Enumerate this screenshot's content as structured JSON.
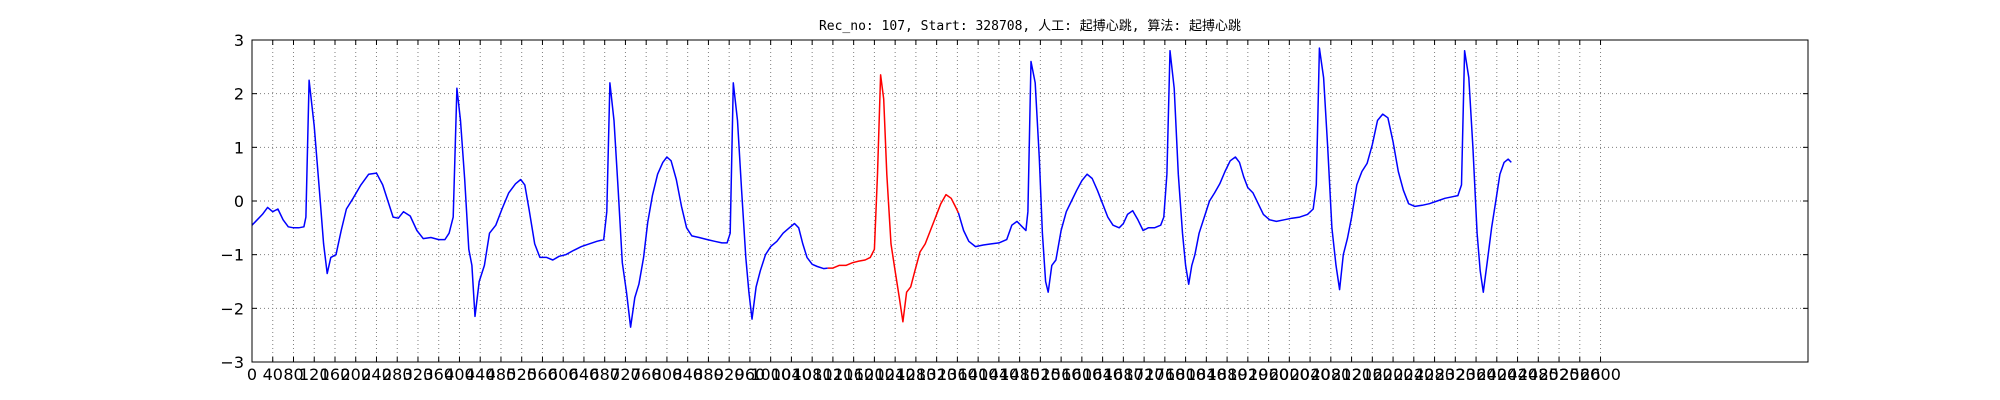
{
  "chart_data": {
    "type": "line",
    "title": "Rec_no: 107, Start: 328708, 人工: 起搏心跳, 算法: 起搏心跳",
    "xlabel": "",
    "ylabel": "",
    "xlim": [
      0,
      3000
    ],
    "ylim": [
      -3,
      3
    ],
    "grid": true,
    "x_ticks": [
      0,
      40,
      80,
      120,
      160,
      200,
      240,
      280,
      320,
      360,
      400,
      440,
      480,
      520,
      560,
      600,
      640,
      680,
      720,
      760,
      800,
      840,
      880,
      920,
      960,
      1000,
      1040,
      1080,
      1120,
      1160,
      1200,
      1240,
      1280,
      1320,
      1360,
      1400,
      1440,
      1480,
      1520,
      1560,
      1600,
      1640,
      1680,
      1720,
      1760,
      1800,
      1840,
      1880,
      1920,
      1960,
      2000,
      2040,
      2080,
      2120,
      2160,
      2200,
      2240,
      2280,
      2320,
      2360,
      2400,
      2440,
      2480,
      2520,
      2560,
      2600
    ],
    "x_tick_labels": [
      "0",
      "40",
      "80",
      "120",
      "160",
      "200",
      "240",
      "280",
      "320",
      "360",
      "400",
      "440",
      "480",
      "520",
      "560",
      "600",
      "640",
      "680",
      "720",
      "760",
      "800",
      "840",
      "880",
      "920",
      "960",
      "1000",
      "1040",
      "1080",
      "1120",
      "1160",
      "1200",
      "1240",
      "1280",
      "1320",
      "1360",
      "1400",
      "1440",
      "1480",
      "1520",
      "1560",
      "1600",
      "1640",
      "1680",
      "1720",
      "1760",
      "1800",
      "1840",
      "1880",
      "1920",
      "1960",
      "2000",
      "2040",
      "2080",
      "2120",
      "2160",
      "2200",
      "2240",
      "2280",
      "2320",
      "2360",
      "2400",
      "2440",
      "2480",
      "2520",
      "2560",
      "2600"
    ],
    "y_ticks": [
      -3,
      -2,
      -1,
      0,
      1,
      2,
      3
    ],
    "y_tick_labels": [
      "−3",
      "−2",
      "−1",
      "0",
      "1",
      "2",
      "3"
    ],
    "colors": {
      "baseline": "#0000ff",
      "highlight": "#ff0000",
      "grid": "#7f7f7f",
      "axes": "#000000"
    },
    "series": [
      {
        "color": "#0000ff",
        "points": [
          [
            0,
            -0.45
          ],
          [
            10,
            -0.35
          ],
          [
            20,
            -0.25
          ],
          [
            30,
            -0.12
          ],
          [
            40,
            -0.2
          ],
          [
            50,
            -0.15
          ],
          [
            60,
            -0.35
          ],
          [
            70,
            -0.48
          ],
          [
            80,
            -0.5
          ],
          [
            90,
            -0.5
          ],
          [
            100,
            -0.48
          ],
          [
            104,
            -0.3
          ],
          [
            110,
            2.25
          ],
          [
            120,
            1.4
          ],
          [
            130,
            0.2
          ],
          [
            138,
            -0.8
          ],
          [
            145,
            -1.35
          ],
          [
            152,
            -1.05
          ],
          [
            162,
            -1.0
          ],
          [
            172,
            -0.55
          ],
          [
            182,
            -0.15
          ],
          [
            195,
            0.05
          ],
          [
            210,
            0.3
          ],
          [
            225,
            0.5
          ],
          [
            240,
            0.52
          ],
          [
            252,
            0.3
          ],
          [
            262,
            0.0
          ],
          [
            272,
            -0.3
          ],
          [
            282,
            -0.32
          ],
          [
            292,
            -0.2
          ],
          [
            305,
            -0.28
          ],
          [
            318,
            -0.55
          ],
          [
            330,
            -0.7
          ],
          [
            345,
            -0.68
          ],
          [
            360,
            -0.72
          ],
          [
            372,
            -0.72
          ],
          [
            380,
            -0.6
          ],
          [
            388,
            -0.3
          ],
          [
            395,
            2.1
          ],
          [
            402,
            1.5
          ],
          [
            410,
            0.4
          ],
          [
            418,
            -0.9
          ],
          [
            424,
            -1.2
          ],
          [
            430,
            -2.15
          ],
          [
            438,
            -1.5
          ],
          [
            448,
            -1.2
          ],
          [
            458,
            -0.6
          ],
          [
            470,
            -0.45
          ],
          [
            482,
            -0.15
          ],
          [
            495,
            0.15
          ],
          [
            508,
            0.32
          ],
          [
            518,
            0.4
          ],
          [
            526,
            0.3
          ],
          [
            534,
            -0.15
          ],
          [
            545,
            -0.8
          ],
          [
            555,
            -1.05
          ],
          [
            568,
            -1.05
          ],
          [
            580,
            -1.1
          ],
          [
            592,
            -1.03
          ],
          [
            605,
            -1.0
          ],
          [
            620,
            -0.92
          ],
          [
            635,
            -0.85
          ],
          [
            650,
            -0.8
          ],
          [
            665,
            -0.75
          ],
          [
            678,
            -0.72
          ],
          [
            684,
            -0.2
          ],
          [
            690,
            2.2
          ],
          [
            698,
            1.5
          ],
          [
            706,
            0.2
          ],
          [
            714,
            -1.15
          ],
          [
            722,
            -1.7
          ],
          [
            730,
            -2.35
          ],
          [
            738,
            -1.8
          ],
          [
            746,
            -1.55
          ],
          [
            755,
            -1.05
          ],
          [
            763,
            -0.4
          ],
          [
            772,
            0.1
          ],
          [
            782,
            0.5
          ],
          [
            792,
            0.72
          ],
          [
            800,
            0.82
          ],
          [
            808,
            0.75
          ],
          [
            818,
            0.4
          ],
          [
            828,
            -0.1
          ],
          [
            838,
            -0.5
          ],
          [
            848,
            -0.65
          ],
          [
            862,
            -0.68
          ],
          [
            878,
            -0.72
          ],
          [
            892,
            -0.75
          ],
          [
            906,
            -0.78
          ],
          [
            916,
            -0.78
          ],
          [
            922,
            -0.6
          ],
          [
            928,
            2.2
          ],
          [
            936,
            1.5
          ],
          [
            944,
            0.2
          ],
          [
            952,
            -1.05
          ],
          [
            958,
            -1.7
          ],
          [
            964,
            -2.2
          ],
          [
            972,
            -1.6
          ],
          [
            980,
            -1.3
          ],
          [
            990,
            -1.0
          ],
          [
            1000,
            -0.85
          ],
          [
            1012,
            -0.75
          ],
          [
            1024,
            -0.6
          ],
          [
            1036,
            -0.5
          ],
          [
            1046,
            -0.42
          ],
          [
            1054,
            -0.5
          ],
          [
            1062,
            -0.8
          ],
          [
            1070,
            -1.05
          ],
          [
            1080,
            -1.18
          ],
          [
            1090,
            -1.22
          ],
          [
            1102,
            -1.26
          ],
          [
            1110,
            -1.25
          ]
        ]
      },
      {
        "color": "#ff0000",
        "points": [
          [
            1110,
            -1.25
          ],
          [
            1120,
            -1.25
          ],
          [
            1132,
            -1.2
          ],
          [
            1145,
            -1.2
          ],
          [
            1158,
            -1.15
          ],
          [
            1170,
            -1.12
          ],
          [
            1182,
            -1.1
          ],
          [
            1192,
            -1.05
          ],
          [
            1200,
            -0.9
          ],
          [
            1206,
            0.5
          ],
          [
            1212,
            2.35
          ],
          [
            1218,
            1.9
          ],
          [
            1224,
            0.5
          ],
          [
            1232,
            -0.8
          ],
          [
            1240,
            -1.3
          ],
          [
            1248,
            -1.8
          ],
          [
            1255,
            -2.25
          ],
          [
            1262,
            -1.7
          ],
          [
            1270,
            -1.6
          ],
          [
            1278,
            -1.3
          ],
          [
            1288,
            -0.95
          ],
          [
            1298,
            -0.8
          ],
          [
            1308,
            -0.55
          ],
          [
            1318,
            -0.3
          ],
          [
            1328,
            -0.05
          ],
          [
            1338,
            0.12
          ],
          [
            1348,
            0.05
          ],
          [
            1356,
            -0.1
          ],
          [
            1362,
            -0.22
          ]
        ]
      },
      {
        "color": "#0000ff",
        "points": [
          [
            1362,
            -0.22
          ],
          [
            1372,
            -0.55
          ],
          [
            1382,
            -0.75
          ],
          [
            1395,
            -0.85
          ],
          [
            1410,
            -0.82
          ],
          [
            1425,
            -0.8
          ],
          [
            1440,
            -0.78
          ],
          [
            1455,
            -0.72
          ],
          [
            1465,
            -0.45
          ],
          [
            1475,
            -0.38
          ],
          [
            1485,
            -0.48
          ],
          [
            1492,
            -0.55
          ],
          [
            1496,
            -0.2
          ],
          [
            1502,
            2.6
          ],
          [
            1510,
            2.2
          ],
          [
            1518,
            0.8
          ],
          [
            1524,
            -0.6
          ],
          [
            1530,
            -1.5
          ],
          [
            1535,
            -1.7
          ],
          [
            1542,
            -1.2
          ],
          [
            1550,
            -1.1
          ],
          [
            1560,
            -0.55
          ],
          [
            1570,
            -0.2
          ],
          [
            1580,
            0.0
          ],
          [
            1590,
            0.2
          ],
          [
            1600,
            0.38
          ],
          [
            1610,
            0.5
          ],
          [
            1620,
            0.42
          ],
          [
            1630,
            0.2
          ],
          [
            1640,
            -0.05
          ],
          [
            1650,
            -0.3
          ],
          [
            1660,
            -0.45
          ],
          [
            1672,
            -0.5
          ],
          [
            1680,
            -0.42
          ],
          [
            1688,
            -0.25
          ],
          [
            1698,
            -0.18
          ],
          [
            1708,
            -0.35
          ],
          [
            1718,
            -0.55
          ],
          [
            1728,
            -0.5
          ],
          [
            1740,
            -0.5
          ],
          [
            1752,
            -0.45
          ],
          [
            1758,
            -0.3
          ],
          [
            1764,
            0.5
          ],
          [
            1770,
            2.8
          ],
          [
            1778,
            2.1
          ],
          [
            1786,
            0.5
          ],
          [
            1794,
            -0.6
          ],
          [
            1800,
            -1.2
          ],
          [
            1806,
            -1.55
          ],
          [
            1812,
            -1.2
          ],
          [
            1818,
            -1.0
          ],
          [
            1826,
            -0.6
          ],
          [
            1836,
            -0.3
          ],
          [
            1846,
            0.0
          ],
          [
            1856,
            0.15
          ],
          [
            1866,
            0.32
          ],
          [
            1876,
            0.55
          ],
          [
            1886,
            0.75
          ],
          [
            1896,
            0.82
          ],
          [
            1904,
            0.72
          ],
          [
            1912,
            0.45
          ],
          [
            1920,
            0.25
          ],
          [
            1930,
            0.15
          ],
          [
            1940,
            -0.05
          ],
          [
            1950,
            -0.25
          ],
          [
            1962,
            -0.35
          ],
          [
            1975,
            -0.38
          ],
          [
            1990,
            -0.35
          ],
          [
            2005,
            -0.32
          ],
          [
            2020,
            -0.3
          ],
          [
            2035,
            -0.25
          ],
          [
            2046,
            -0.15
          ],
          [
            2052,
            0.3
          ],
          [
            2058,
            2.85
          ],
          [
            2066,
            2.3
          ],
          [
            2074,
            1.0
          ],
          [
            2082,
            -0.5
          ],
          [
            2090,
            -1.2
          ],
          [
            2097,
            -1.65
          ],
          [
            2104,
            -1.0
          ],
          [
            2112,
            -0.7
          ],
          [
            2120,
            -0.3
          ],
          [
            2130,
            0.3
          ],
          [
            2140,
            0.55
          ],
          [
            2150,
            0.7
          ],
          [
            2160,
            1.05
          ],
          [
            2170,
            1.5
          ],
          [
            2180,
            1.62
          ],
          [
            2190,
            1.55
          ],
          [
            2200,
            1.1
          ],
          [
            2210,
            0.55
          ],
          [
            2220,
            0.2
          ],
          [
            2230,
            -0.05
          ],
          [
            2242,
            -0.1
          ],
          [
            2256,
            -0.08
          ],
          [
            2270,
            -0.05
          ],
          [
            2285,
            0.0
          ],
          [
            2300,
            0.05
          ],
          [
            2315,
            0.08
          ],
          [
            2325,
            0.1
          ],
          [
            2332,
            0.3
          ],
          [
            2338,
            2.8
          ],
          [
            2346,
            2.3
          ],
          [
            2354,
            1.0
          ],
          [
            2362,
            -0.6
          ],
          [
            2368,
            -1.3
          ],
          [
            2374,
            -1.7
          ],
          [
            2382,
            -1.1
          ],
          [
            2390,
            -0.5
          ],
          [
            2398,
            0.0
          ],
          [
            2406,
            0.5
          ],
          [
            2414,
            0.72
          ],
          [
            2422,
            0.78
          ],
          [
            2428,
            0.72
          ]
        ]
      }
    ]
  }
}
